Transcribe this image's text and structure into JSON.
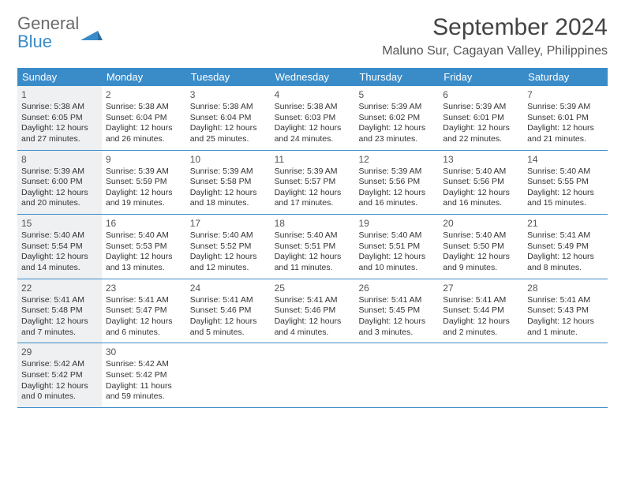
{
  "colors": {
    "accent": "#3a8cc9",
    "shade": "#eef0f2",
    "text": "#333333",
    "logo_gray": "#6b6b6b",
    "logo_blue": "#3a8cc9"
  },
  "logo": {
    "line1": "General",
    "line2": "Blue"
  },
  "title": "September 2024",
  "subtitle": "Maluno Sur, Cagayan Valley, Philippines",
  "day_headers": [
    "Sunday",
    "Monday",
    "Tuesday",
    "Wednesday",
    "Thursday",
    "Friday",
    "Saturday"
  ],
  "shading_prefix_count": 1,
  "days": [
    {
      "n": "1",
      "sr": "Sunrise: 5:38 AM",
      "ss": "Sunset: 6:05 PM",
      "d1": "Daylight: 12 hours",
      "d2": "and 27 minutes."
    },
    {
      "n": "2",
      "sr": "Sunrise: 5:38 AM",
      "ss": "Sunset: 6:04 PM",
      "d1": "Daylight: 12 hours",
      "d2": "and 26 minutes."
    },
    {
      "n": "3",
      "sr": "Sunrise: 5:38 AM",
      "ss": "Sunset: 6:04 PM",
      "d1": "Daylight: 12 hours",
      "d2": "and 25 minutes."
    },
    {
      "n": "4",
      "sr": "Sunrise: 5:38 AM",
      "ss": "Sunset: 6:03 PM",
      "d1": "Daylight: 12 hours",
      "d2": "and 24 minutes."
    },
    {
      "n": "5",
      "sr": "Sunrise: 5:39 AM",
      "ss": "Sunset: 6:02 PM",
      "d1": "Daylight: 12 hours",
      "d2": "and 23 minutes."
    },
    {
      "n": "6",
      "sr": "Sunrise: 5:39 AM",
      "ss": "Sunset: 6:01 PM",
      "d1": "Daylight: 12 hours",
      "d2": "and 22 minutes."
    },
    {
      "n": "7",
      "sr": "Sunrise: 5:39 AM",
      "ss": "Sunset: 6:01 PM",
      "d1": "Daylight: 12 hours",
      "d2": "and 21 minutes."
    },
    {
      "n": "8",
      "sr": "Sunrise: 5:39 AM",
      "ss": "Sunset: 6:00 PM",
      "d1": "Daylight: 12 hours",
      "d2": "and 20 minutes."
    },
    {
      "n": "9",
      "sr": "Sunrise: 5:39 AM",
      "ss": "Sunset: 5:59 PM",
      "d1": "Daylight: 12 hours",
      "d2": "and 19 minutes."
    },
    {
      "n": "10",
      "sr": "Sunrise: 5:39 AM",
      "ss": "Sunset: 5:58 PM",
      "d1": "Daylight: 12 hours",
      "d2": "and 18 minutes."
    },
    {
      "n": "11",
      "sr": "Sunrise: 5:39 AM",
      "ss": "Sunset: 5:57 PM",
      "d1": "Daylight: 12 hours",
      "d2": "and 17 minutes."
    },
    {
      "n": "12",
      "sr": "Sunrise: 5:39 AM",
      "ss": "Sunset: 5:56 PM",
      "d1": "Daylight: 12 hours",
      "d2": "and 16 minutes."
    },
    {
      "n": "13",
      "sr": "Sunrise: 5:40 AM",
      "ss": "Sunset: 5:56 PM",
      "d1": "Daylight: 12 hours",
      "d2": "and 16 minutes."
    },
    {
      "n": "14",
      "sr": "Sunrise: 5:40 AM",
      "ss": "Sunset: 5:55 PM",
      "d1": "Daylight: 12 hours",
      "d2": "and 15 minutes."
    },
    {
      "n": "15",
      "sr": "Sunrise: 5:40 AM",
      "ss": "Sunset: 5:54 PM",
      "d1": "Daylight: 12 hours",
      "d2": "and 14 minutes."
    },
    {
      "n": "16",
      "sr": "Sunrise: 5:40 AM",
      "ss": "Sunset: 5:53 PM",
      "d1": "Daylight: 12 hours",
      "d2": "and 13 minutes."
    },
    {
      "n": "17",
      "sr": "Sunrise: 5:40 AM",
      "ss": "Sunset: 5:52 PM",
      "d1": "Daylight: 12 hours",
      "d2": "and 12 minutes."
    },
    {
      "n": "18",
      "sr": "Sunrise: 5:40 AM",
      "ss": "Sunset: 5:51 PM",
      "d1": "Daylight: 12 hours",
      "d2": "and 11 minutes."
    },
    {
      "n": "19",
      "sr": "Sunrise: 5:40 AM",
      "ss": "Sunset: 5:51 PM",
      "d1": "Daylight: 12 hours",
      "d2": "and 10 minutes."
    },
    {
      "n": "20",
      "sr": "Sunrise: 5:40 AM",
      "ss": "Sunset: 5:50 PM",
      "d1": "Daylight: 12 hours",
      "d2": "and 9 minutes."
    },
    {
      "n": "21",
      "sr": "Sunrise: 5:41 AM",
      "ss": "Sunset: 5:49 PM",
      "d1": "Daylight: 12 hours",
      "d2": "and 8 minutes."
    },
    {
      "n": "22",
      "sr": "Sunrise: 5:41 AM",
      "ss": "Sunset: 5:48 PM",
      "d1": "Daylight: 12 hours",
      "d2": "and 7 minutes."
    },
    {
      "n": "23",
      "sr": "Sunrise: 5:41 AM",
      "ss": "Sunset: 5:47 PM",
      "d1": "Daylight: 12 hours",
      "d2": "and 6 minutes."
    },
    {
      "n": "24",
      "sr": "Sunrise: 5:41 AM",
      "ss": "Sunset: 5:46 PM",
      "d1": "Daylight: 12 hours",
      "d2": "and 5 minutes."
    },
    {
      "n": "25",
      "sr": "Sunrise: 5:41 AM",
      "ss": "Sunset: 5:46 PM",
      "d1": "Daylight: 12 hours",
      "d2": "and 4 minutes."
    },
    {
      "n": "26",
      "sr": "Sunrise: 5:41 AM",
      "ss": "Sunset: 5:45 PM",
      "d1": "Daylight: 12 hours",
      "d2": "and 3 minutes."
    },
    {
      "n": "27",
      "sr": "Sunrise: 5:41 AM",
      "ss": "Sunset: 5:44 PM",
      "d1": "Daylight: 12 hours",
      "d2": "and 2 minutes."
    },
    {
      "n": "28",
      "sr": "Sunrise: 5:41 AM",
      "ss": "Sunset: 5:43 PM",
      "d1": "Daylight: 12 hours",
      "d2": "and 1 minute."
    },
    {
      "n": "29",
      "sr": "Sunrise: 5:42 AM",
      "ss": "Sunset: 5:42 PM",
      "d1": "Daylight: 12 hours",
      "d2": "and 0 minutes."
    },
    {
      "n": "30",
      "sr": "Sunrise: 5:42 AM",
      "ss": "Sunset: 5:42 PM",
      "d1": "Daylight: 11 hours",
      "d2": "and 59 minutes."
    }
  ]
}
